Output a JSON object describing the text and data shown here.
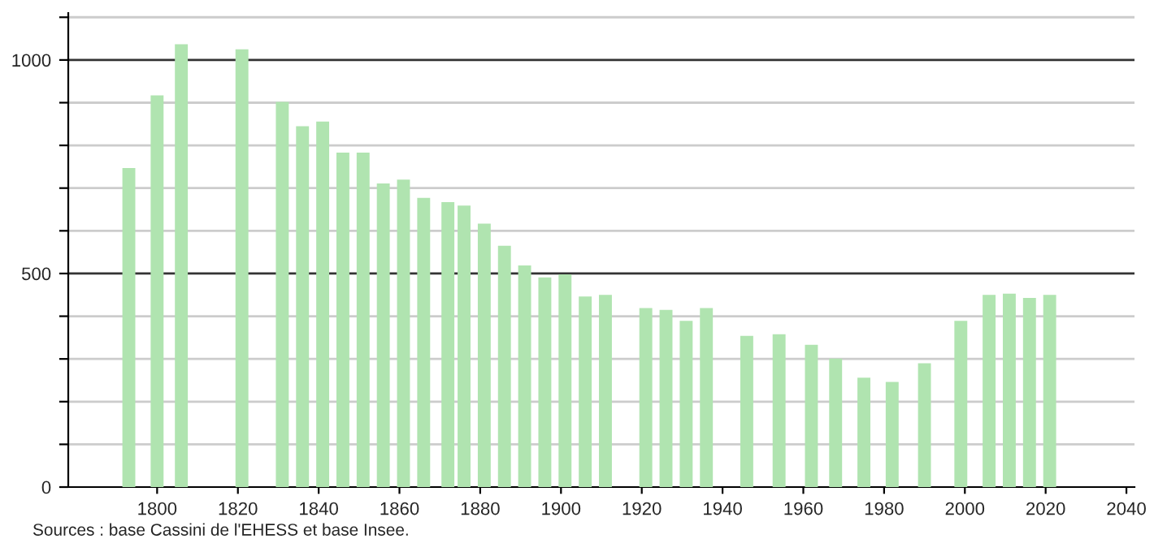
{
  "chart_data": {
    "type": "bar",
    "x": [
      1793,
      1800,
      1806,
      1821,
      1831,
      1836,
      1841,
      1846,
      1851,
      1856,
      1861,
      1866,
      1872,
      1876,
      1881,
      1886,
      1891,
      1896,
      1901,
      1906,
      1911,
      1921,
      1926,
      1931,
      1936,
      1946,
      1954,
      1962,
      1968,
      1975,
      1982,
      1990,
      1999,
      2006,
      2011,
      2016,
      2021
    ],
    "values": [
      747,
      917,
      1037,
      1025,
      902,
      845,
      856,
      783,
      783,
      711,
      720,
      677,
      667,
      659,
      617,
      565,
      519,
      491,
      498,
      446,
      450,
      419,
      415,
      389,
      419,
      354,
      358,
      333,
      301,
      256,
      246,
      290,
      389,
      450,
      453,
      443,
      450
    ],
    "color": "#b0e4b0",
    "xlim": [
      1778,
      2042
    ],
    "xticks": [
      1800,
      1820,
      1840,
      1860,
      1880,
      1900,
      1920,
      1940,
      1960,
      1980,
      2000,
      2020,
      2040
    ],
    "ylim": [
      0,
      1110
    ],
    "yticks": [
      0,
      {
        "value": 100,
        "label": null
      },
      {
        "value": 200,
        "label": null
      },
      {
        "value": 300,
        "label": null
      },
      {
        "value": 400,
        "label": null
      },
      500,
      {
        "value": 600,
        "label": null
      },
      {
        "value": 700,
        "label": null
      },
      {
        "value": 800,
        "label": null
      },
      {
        "value": 900,
        "label": null
      },
      1000,
      {
        "value": 1100,
        "label": null
      }
    ],
    "grid": "y",
    "annotations": [
      "Sources : base Cassini de l'EHESS et base Insee."
    ]
  }
}
